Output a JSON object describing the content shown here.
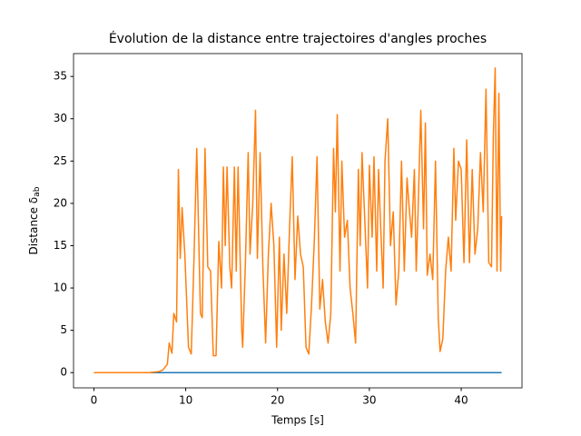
{
  "chart_data": {
    "type": "line",
    "title": "Évolution de la distance entre trajectoires d'angles proches",
    "xlabel": "Temps [s]",
    "ylabel": "Distance δ",
    "ylabel_subscript": "ab",
    "xlim": [
      -2.22,
      46.62
    ],
    "ylim": [
      -1.8,
      37.7
    ],
    "xticks": [
      0,
      10,
      20,
      30,
      40
    ],
    "yticks": [
      0,
      5,
      10,
      15,
      20,
      25,
      30,
      35
    ],
    "series": [
      {
        "color": "#1f77b4",
        "x": [
          0,
          44.4
        ],
        "values": [
          0,
          0
        ]
      },
      {
        "color": "#ff7f0e",
        "x": [
          0,
          2,
          4,
          6,
          7,
          7.5,
          8,
          8.2,
          8.5,
          8.7,
          9.0,
          9.2,
          9.4,
          9.6,
          9.9,
          10.3,
          10.6,
          10.9,
          11.2,
          11.6,
          11.8,
          12.1,
          12.4,
          12.7,
          13.0,
          13.3,
          13.6,
          13.9,
          14.1,
          14.3,
          14.5,
          14.8,
          15.0,
          15.3,
          15.5,
          15.7,
          16.1,
          16.2,
          16.5,
          16.8,
          17.0,
          17.3,
          17.6,
          17.8,
          18.1,
          18.4,
          18.7,
          19.0,
          19.3,
          19.6,
          19.9,
          20.2,
          20.4,
          20.7,
          21.0,
          21.3,
          21.6,
          21.9,
          22.2,
          22.5,
          22.8,
          23.1,
          23.4,
          23.7,
          24.0,
          24.3,
          24.6,
          24.9,
          25.2,
          25.5,
          25.8,
          26.1,
          26.3,
          26.5,
          26.8,
          27.0,
          27.3,
          27.6,
          27.9,
          28.2,
          28.5,
          28.8,
          29.0,
          29.2,
          29.5,
          29.8,
          30.0,
          30.3,
          30.5,
          30.8,
          31.0,
          31.2,
          31.5,
          31.7,
          32.0,
          32.3,
          32.6,
          32.9,
          33.2,
          33.5,
          33.8,
          34.1,
          34.3,
          34.6,
          34.9,
          35.1,
          35.3,
          35.6,
          35.9,
          36.1,
          36.3,
          36.6,
          36.9,
          37.2,
          37.5,
          37.7,
          38.0,
          38.3,
          38.6,
          38.9,
          39.2,
          39.4,
          39.7,
          40.0,
          40.3,
          40.6,
          40.9,
          41.2,
          41.5,
          41.8,
          42.1,
          42.4,
          42.7,
          43.0,
          43.3,
          43.5,
          43.7,
          43.9,
          44.1,
          44.3,
          44.4
        ],
        "values": [
          0,
          0,
          0,
          0,
          0.1,
          0.3,
          1,
          3.5,
          2.3,
          7,
          6,
          24,
          13.5,
          19.5,
          14,
          3,
          2.2,
          13.5,
          26.5,
          7,
          6.5,
          26.5,
          12.5,
          12,
          2,
          2,
          15.5,
          10,
          24.3,
          15,
          24.3,
          12.5,
          10,
          24.3,
          12,
          24.3,
          5,
          3,
          13,
          26,
          14,
          20,
          31,
          13.5,
          26,
          12.5,
          3.5,
          14,
          20,
          15,
          3,
          16,
          5,
          14,
          7,
          17,
          25.5,
          11,
          18.5,
          14,
          12.5,
          3,
          2.2,
          8,
          15.5,
          25.5,
          7.5,
          11,
          6,
          3.5,
          7,
          26.5,
          19,
          30.5,
          12,
          25,
          16,
          18,
          10,
          7,
          3.5,
          24,
          15,
          26,
          18,
          10,
          24.5,
          16,
          25.5,
          12,
          24,
          18,
          10,
          25,
          30,
          15,
          19,
          8,
          12,
          25,
          12,
          23,
          20,
          16,
          24,
          12,
          19,
          31,
          17,
          29.5,
          11.5,
          14,
          11,
          25,
          6.5,
          2.5,
          4,
          12,
          16,
          12,
          26.5,
          18,
          25,
          24,
          13,
          27.5,
          13,
          24,
          14,
          17,
          26,
          19,
          33.5,
          13,
          12.5,
          28,
          36,
          12,
          33,
          12,
          18.5
        ]
      }
    ]
  }
}
